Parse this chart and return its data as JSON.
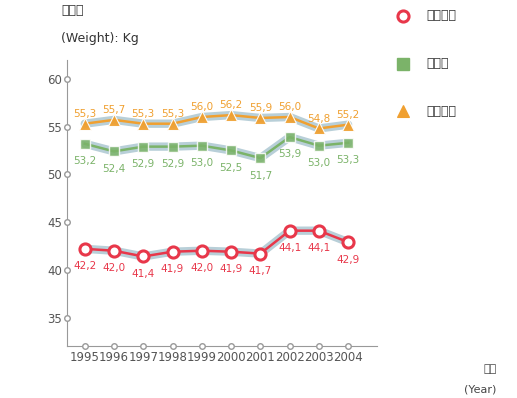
{
  "years": [
    1995,
    1996,
    1997,
    1998,
    1999,
    2000,
    2001,
    2002,
    2003,
    2004
  ],
  "elementary": [
    42.2,
    42.0,
    41.4,
    41.9,
    42.0,
    41.9,
    41.7,
    44.1,
    44.1,
    42.9
  ],
  "middle": [
    53.2,
    52.4,
    52.9,
    52.9,
    53.0,
    52.5,
    51.7,
    53.9,
    53.0,
    53.3
  ],
  "high": [
    55.3,
    55.7,
    55.3,
    55.3,
    56.0,
    56.2,
    55.9,
    56.0,
    54.8,
    55.2
  ],
  "elementary_color": "#e8374a",
  "middle_color": "#7bb369",
  "high_color": "#f0a030",
  "line_shadow_color": "#b8cfd8",
  "axis_color": "#999999",
  "title_line1": "몸무게",
  "title_line2": "(Weight): Kg",
  "xlabel_line1": "연도",
  "xlabel_line2": "(Year)",
  "ylim": [
    32,
    62
  ],
  "yticks": [
    35,
    40,
    45,
    50,
    55,
    60
  ],
  "legend_labels": [
    "초등학교",
    "중학교",
    "고등학교"
  ],
  "background_color": "#ffffff",
  "label_fontsize": 7.5,
  "tick_fontsize": 8.5,
  "title_fontsize": 9,
  "legend_fontsize": 9
}
